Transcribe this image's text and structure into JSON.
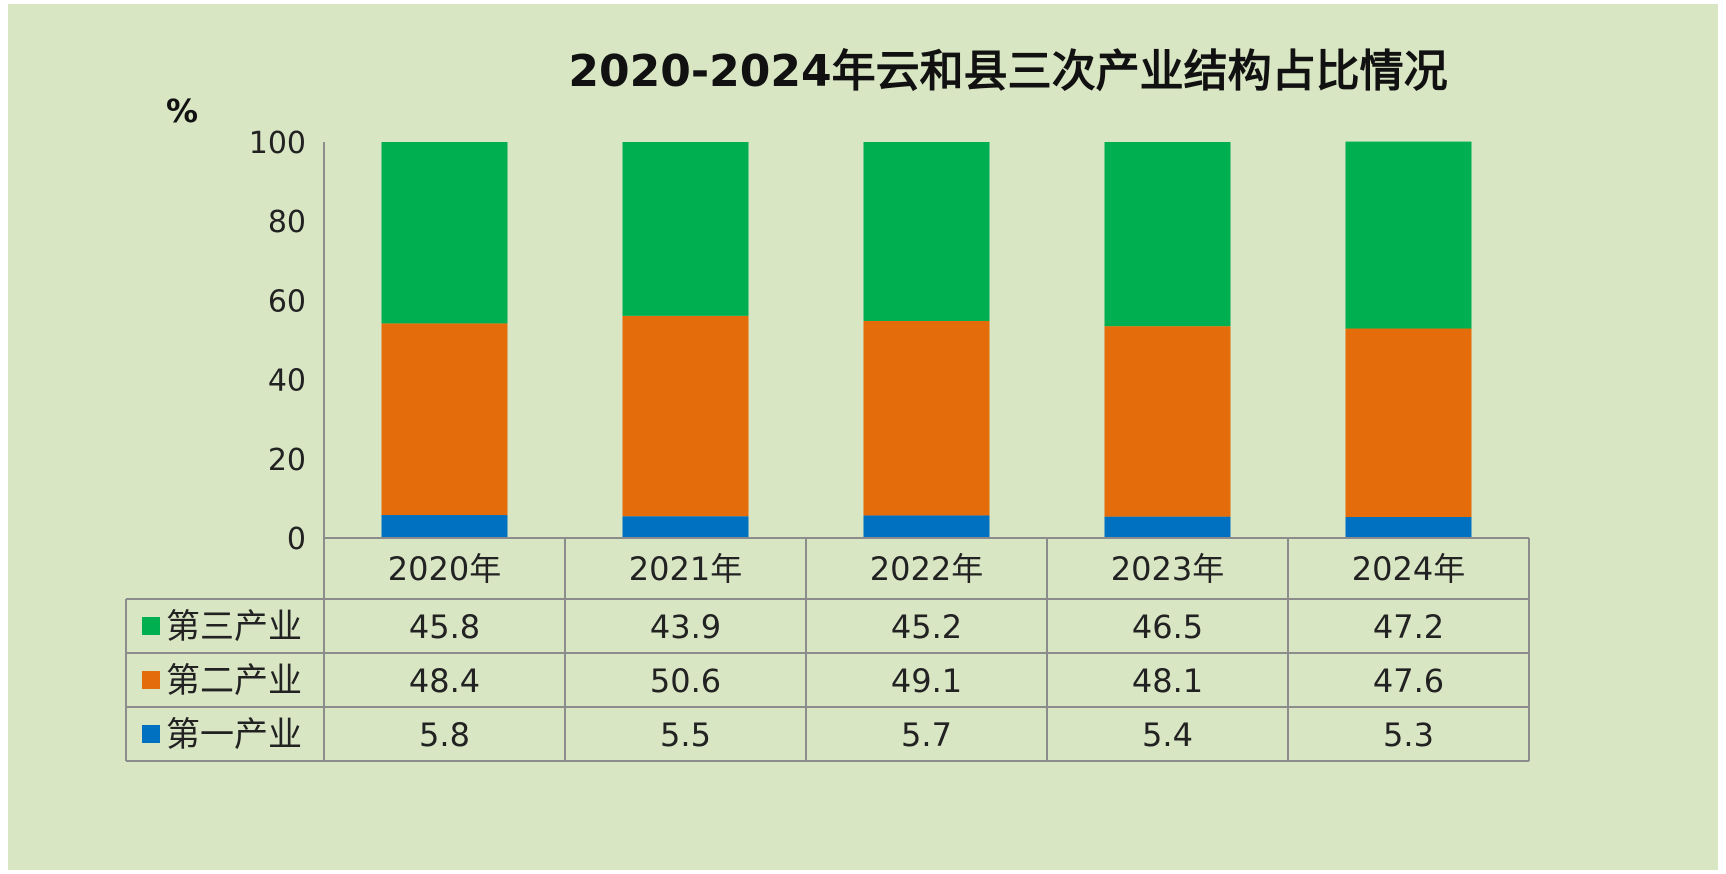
{
  "chart_data": {
    "type": "bar",
    "stacked": true,
    "title": "2020-2024年云和县三次产业结构占比情况",
    "ylabel": "%",
    "ylim": [
      0,
      100
    ],
    "yticks": [
      0,
      20,
      40,
      60,
      80,
      100
    ],
    "grid": false,
    "legend": "data-table",
    "categories": [
      "2020年",
      "2021年",
      "2022年",
      "2023年",
      "2024年"
    ],
    "series": [
      {
        "name": "第三产业",
        "color": "#00b050",
        "values": [
          "45.8",
          "43.9",
          "45.2",
          "46.5",
          "47.2"
        ]
      },
      {
        "name": "第二产业",
        "color": "#e46c0a",
        "values": [
          "48.4",
          "50.6",
          "49.1",
          "48.1",
          "47.6"
        ]
      },
      {
        "name": "第一产业",
        "color": "#0070c0",
        "values": [
          "5.8",
          "5.5",
          "5.7",
          "5.4",
          "5.3"
        ]
      }
    ]
  }
}
